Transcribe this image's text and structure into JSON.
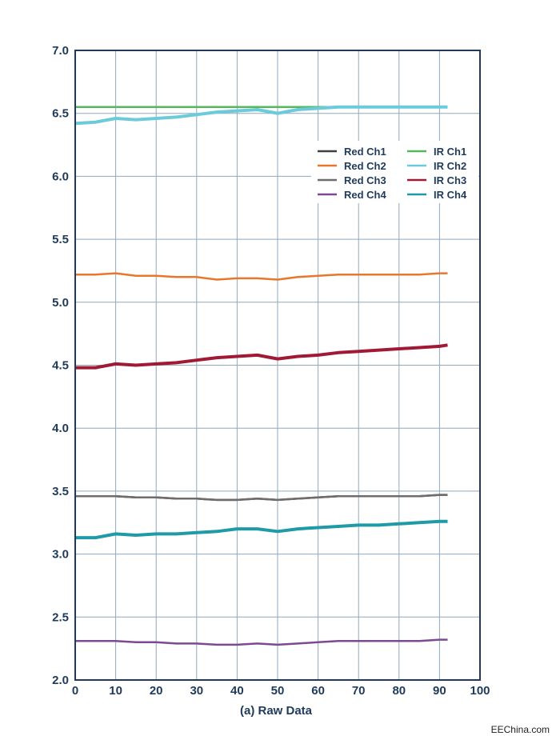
{
  "chart_data": {
    "type": "line",
    "title": "",
    "xlabel": "(a) Raw Data",
    "ylabel": "",
    "xlim": [
      0,
      100
    ],
    "ylim": [
      2.0,
      7.0
    ],
    "x_ticks": [
      "0",
      "10",
      "20",
      "30",
      "40",
      "50",
      "60",
      "70",
      "80",
      "90",
      "100"
    ],
    "y_ticks": [
      "7.0",
      "6.5",
      "6.0",
      "5.5",
      "5.0",
      "4.5",
      "4.0",
      "3.5",
      "3.0",
      "2.5",
      "2.0"
    ],
    "grid": true,
    "legend_position": "top-right",
    "x": [
      0,
      5,
      10,
      15,
      20,
      25,
      30,
      35,
      40,
      45,
      50,
      55,
      60,
      65,
      70,
      75,
      80,
      85,
      90,
      92
    ],
    "series": [
      {
        "name": "Red Ch1",
        "color": "#3f3f3f",
        "values": [
          3.46,
          3.46,
          3.46,
          3.45,
          3.45,
          3.44,
          3.44,
          3.43,
          3.43,
          3.44,
          3.43,
          3.44,
          3.45,
          3.46,
          3.46,
          3.46,
          3.46,
          3.46,
          3.47,
          3.47
        ]
      },
      {
        "name": "Red Ch2",
        "color": "#e8772e",
        "values": [
          5.22,
          5.22,
          5.23,
          5.21,
          5.21,
          5.2,
          5.2,
          5.18,
          5.19,
          5.19,
          5.18,
          5.2,
          5.21,
          5.22,
          5.22,
          5.22,
          5.22,
          5.22,
          5.23,
          5.23
        ]
      },
      {
        "name": "Red Ch3",
        "color": "#6d6d6d",
        "values": [
          3.46,
          3.46,
          3.46,
          3.45,
          3.45,
          3.44,
          3.44,
          3.43,
          3.43,
          3.44,
          3.43,
          3.44,
          3.45,
          3.46,
          3.46,
          3.46,
          3.46,
          3.46,
          3.47,
          3.47
        ]
      },
      {
        "name": "Red Ch4",
        "color": "#7d4a92",
        "values": [
          2.31,
          2.31,
          2.31,
          2.3,
          2.3,
          2.29,
          2.29,
          2.28,
          2.28,
          2.29,
          2.28,
          2.29,
          2.3,
          2.31,
          2.31,
          2.31,
          2.31,
          2.31,
          2.32,
          2.32
        ]
      },
      {
        "name": "IR Ch1",
        "color": "#56b85a",
        "values": [
          6.55,
          6.55,
          6.55,
          6.55,
          6.55,
          6.55,
          6.55,
          6.55,
          6.55,
          6.55,
          6.55,
          6.55,
          6.55,
          6.55,
          6.55,
          6.55,
          6.55,
          6.55,
          6.55,
          6.55
        ]
      },
      {
        "name": "IR Ch2",
        "color": "#6ccbdb",
        "values": [
          6.42,
          6.43,
          6.46,
          6.45,
          6.46,
          6.47,
          6.49,
          6.51,
          6.52,
          6.53,
          6.5,
          6.53,
          6.54,
          6.55,
          6.55,
          6.55,
          6.55,
          6.55,
          6.55,
          6.55
        ]
      },
      {
        "name": "IR Ch3",
        "color": "#a11a35",
        "values": [
          4.48,
          4.48,
          4.51,
          4.5,
          4.51,
          4.52,
          4.54,
          4.56,
          4.57,
          4.58,
          4.55,
          4.57,
          4.58,
          4.6,
          4.61,
          4.62,
          4.63,
          4.64,
          4.65,
          4.66
        ]
      },
      {
        "name": "IR Ch4",
        "color": "#1f9aa6",
        "values": [
          3.13,
          3.13,
          3.16,
          3.15,
          3.16,
          3.16,
          3.17,
          3.18,
          3.2,
          3.2,
          3.18,
          3.2,
          3.21,
          3.22,
          3.23,
          3.23,
          3.24,
          3.25,
          3.26,
          3.26
        ]
      }
    ]
  },
  "watermark": "EEChina.com"
}
